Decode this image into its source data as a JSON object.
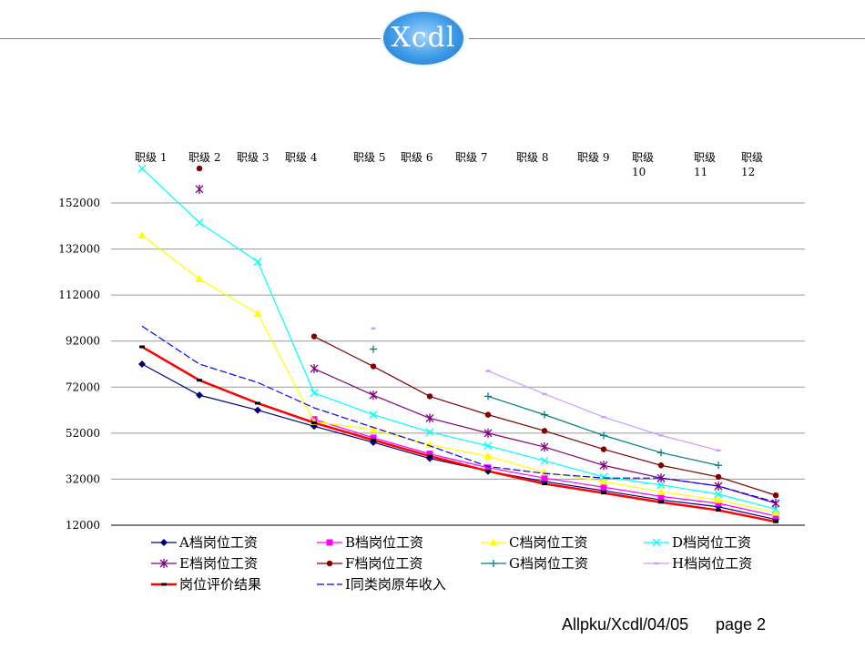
{
  "header": {
    "logo_text": "Xcdl"
  },
  "footer": {
    "reference": "Allpku/Xcdl/04/05",
    "page": "page 2"
  },
  "chart_data": {
    "type": "line",
    "title": "",
    "xlabel": "",
    "ylabel": "",
    "ylim": [
      12000,
      168000
    ],
    "yticks": [
      12000,
      32000,
      52000,
      72000,
      92000,
      112000,
      132000,
      152000
    ],
    "grid": true,
    "legend_position": "bottom",
    "categories": [
      [
        "职级 1"
      ],
      [
        "职级 2"
      ],
      [
        "职级 3"
      ],
      [
        "职级 4"
      ],
      [
        "职级 5"
      ],
      [
        "职级 6"
      ],
      [
        "职级 7"
      ],
      [
        "职级 8"
      ],
      [
        "职级 9"
      ],
      [
        "职级",
        "10"
      ],
      [
        "职级",
        "11"
      ],
      [
        "职级",
        "12"
      ]
    ],
    "series": [
      {
        "name": "A档岗位工资",
        "color": "#000080",
        "marker": "diamond",
        "values": [
          82000,
          68500,
          62000,
          55000,
          48000,
          41000,
          35500,
          31000,
          27000,
          23000,
          20000,
          14500
        ]
      },
      {
        "name": "B档岗位工资",
        "color": "#ff00ff",
        "marker": "square",
        "values": [
          null,
          null,
          null,
          58000,
          50000,
          43000,
          37000,
          32500,
          28500,
          24500,
          21500,
          16000
        ]
      },
      {
        "name": "C档岗位工资",
        "color": "#ffff00",
        "marker": "triangle",
        "values": [
          138000,
          119000,
          104000,
          57000,
          53500,
          47000,
          42000,
          35000,
          31000,
          26500,
          23000,
          17500
        ]
      },
      {
        "name": "D档岗位工资",
        "color": "#00ffff",
        "marker": "x",
        "values": [
          167000,
          143500,
          126500,
          69500,
          60000,
          52500,
          46500,
          40000,
          33000,
          29500,
          25500,
          19000
        ]
      },
      {
        "name": "E档岗位工资",
        "color": "#800080",
        "marker": "asterisk",
        "values": [
          null,
          158000,
          null,
          80000,
          68500,
          58500,
          52000,
          46000,
          38000,
          32500,
          29000,
          21500
        ]
      },
      {
        "name": "F档岗位工资",
        "color": "#800000",
        "marker": "circle",
        "values": [
          null,
          167000,
          null,
          94000,
          81000,
          68000,
          60000,
          53000,
          45000,
          38000,
          33000,
          25000
        ]
      },
      {
        "name": "G档岗位工资",
        "color": "#008080",
        "marker": "plus",
        "values": [
          null,
          null,
          null,
          null,
          88500,
          null,
          68000,
          60000,
          51000,
          43500,
          38000,
          null
        ]
      },
      {
        "name": "H档岗位工资",
        "color": "#cc99ff",
        "marker": "dash",
        "values": [
          null,
          null,
          null,
          null,
          97500,
          null,
          79000,
          69000,
          59000,
          51000,
          44500,
          null
        ]
      },
      {
        "name": "岗位评价结果",
        "color": "#ff0000",
        "marker": "bar",
        "width": 2.5,
        "values": [
          89500,
          75000,
          65000,
          56500,
          49000,
          42000,
          35500,
          30000,
          26000,
          22000,
          18500,
          13500
        ]
      },
      {
        "name": "I同类岗原年收入",
        "color": "#0000ff",
        "marker": "none",
        "dash": true,
        "values": [
          98500,
          82000,
          74000,
          63000,
          54500,
          46500,
          37500,
          34500,
          32500,
          32500,
          29000,
          22000
        ]
      }
    ]
  }
}
